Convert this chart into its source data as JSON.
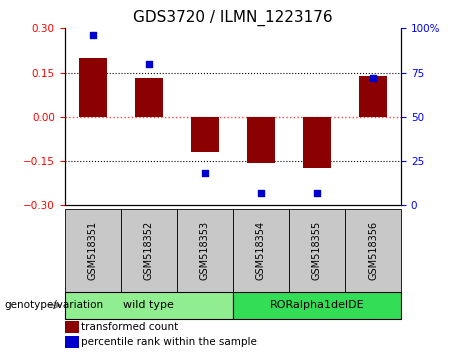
{
  "title": "GDS3720 / ILMN_1223176",
  "categories": [
    "GSM518351",
    "GSM518352",
    "GSM518353",
    "GSM518354",
    "GSM518355",
    "GSM518356"
  ],
  "bar_values": [
    0.2,
    0.13,
    -0.12,
    -0.155,
    -0.175,
    0.14
  ],
  "dot_values": [
    96,
    80,
    18,
    7,
    7,
    72
  ],
  "ylim_left": [
    -0.3,
    0.3
  ],
  "ylim_right": [
    0,
    100
  ],
  "yticks_left": [
    -0.3,
    -0.15,
    0.0,
    0.15,
    0.3
  ],
  "yticks_right": [
    0,
    25,
    50,
    75,
    100
  ],
  "bar_color": "#8B0000",
  "dot_color": "#0000CC",
  "zero_line_color": "#FF4444",
  "hline_color": "black",
  "hline_positions": [
    -0.15,
    0.15
  ],
  "group1_label": "wild type",
  "group2_label": "RORalpha1delDE",
  "group1_indices": [
    0,
    1,
    2
  ],
  "group2_indices": [
    3,
    4,
    5
  ],
  "group1_color": "#90EE90",
  "group2_color": "#33DD55",
  "sample_box_color": "#C8C8C8",
  "genotype_label": "genotype/variation",
  "legend_bar_label": "transformed count",
  "legend_dot_label": "percentile rank within the sample",
  "background_color": "#ffffff",
  "tick_label_size": 7.5,
  "title_size": 11
}
